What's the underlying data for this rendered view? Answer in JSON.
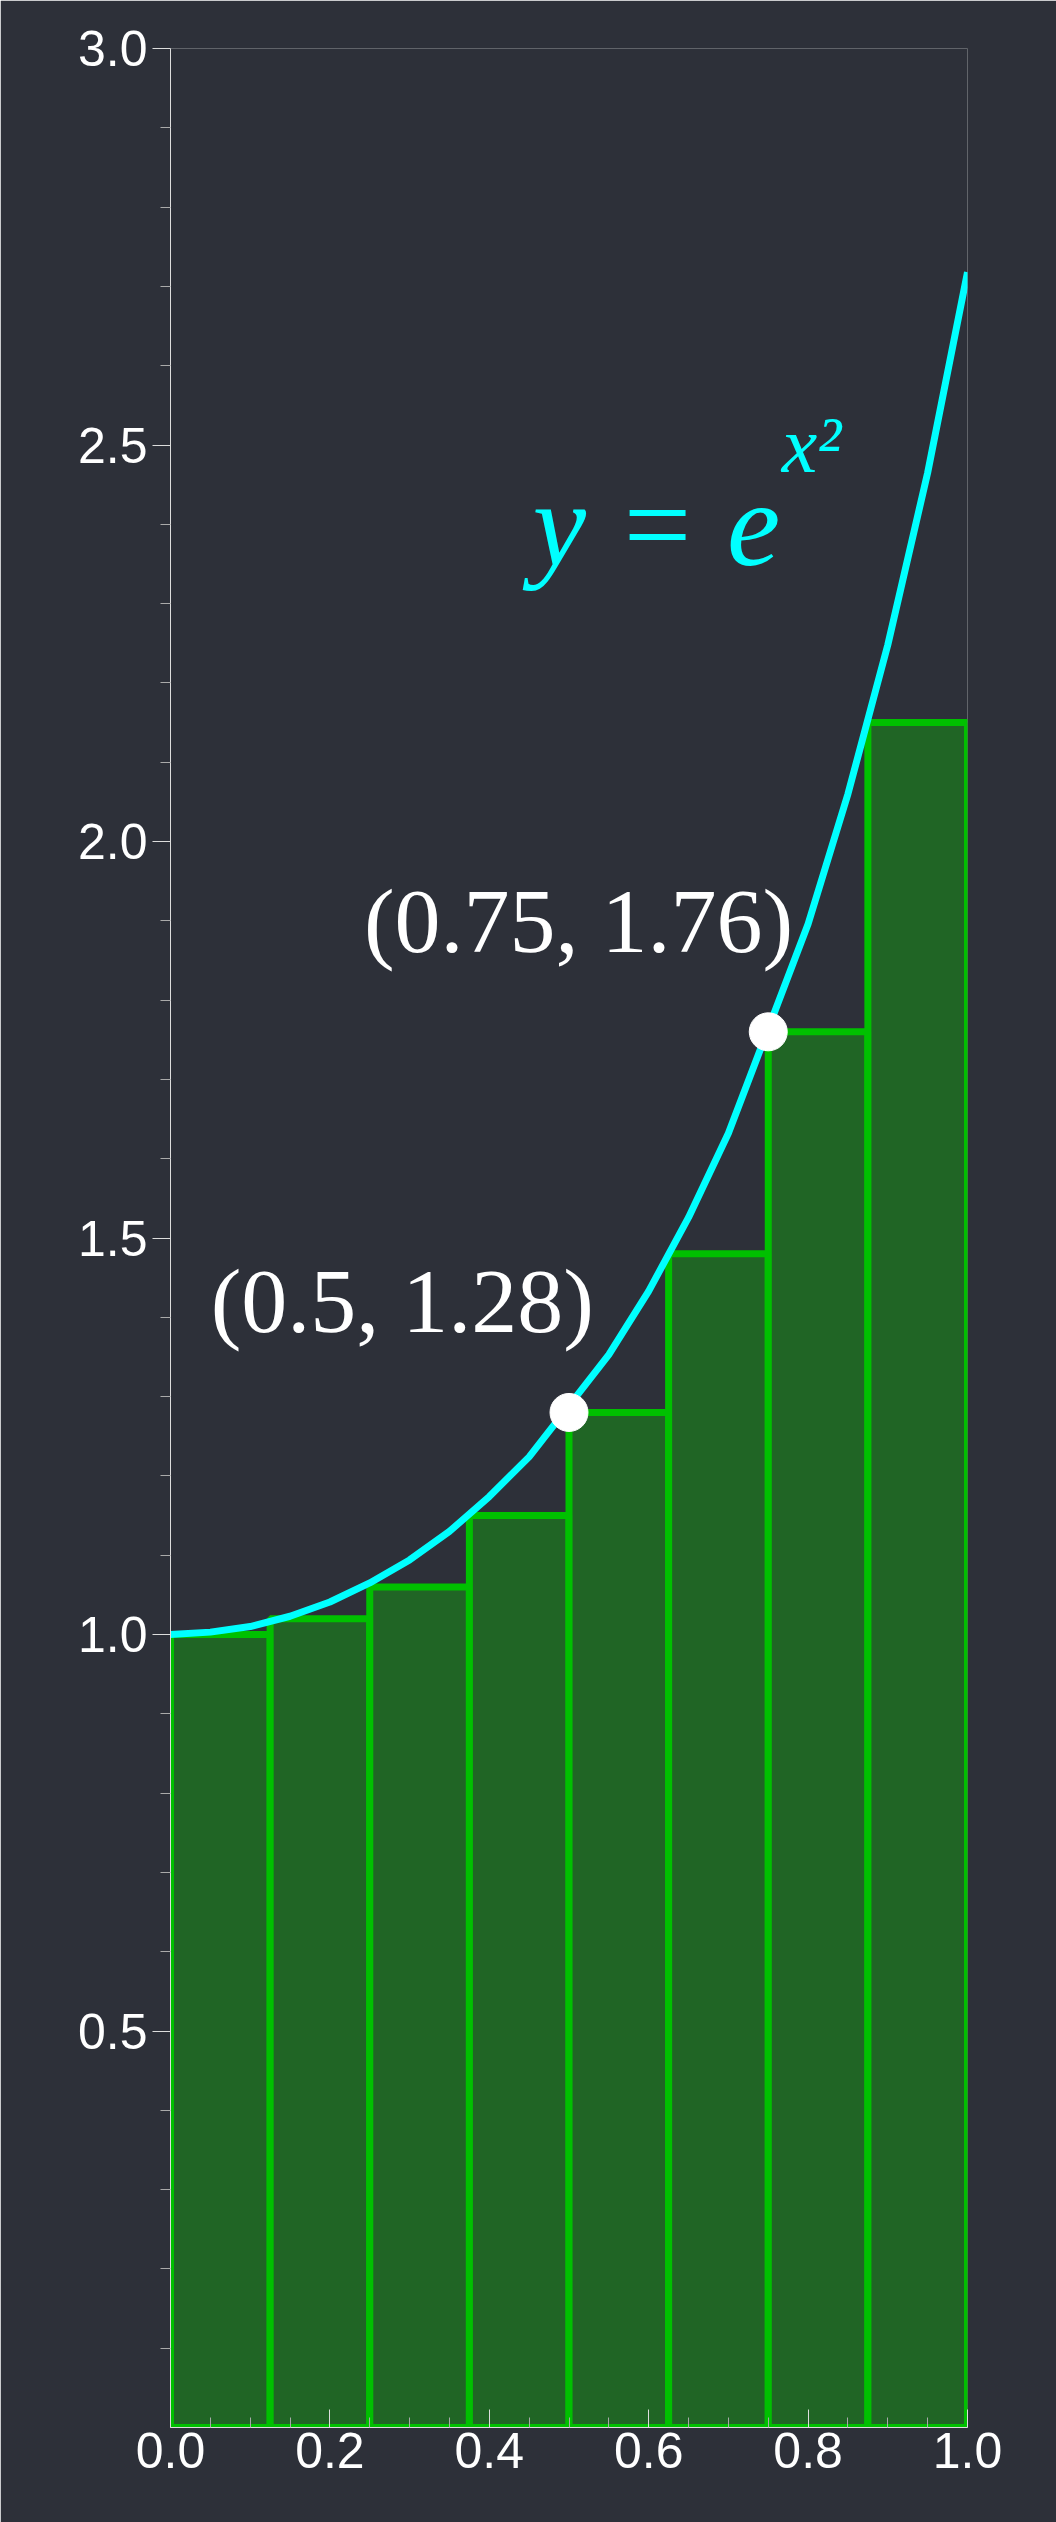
{
  "chart_data": {
    "type": "histogram",
    "bins": [
      0,
      0.125,
      0.25,
      0.375,
      0.5,
      0.625,
      0.75,
      0.875,
      1.0
    ],
    "values": [
      1.0,
      1.02,
      1.06,
      1.15,
      1.28,
      1.48,
      1.76,
      2.15
    ],
    "color": "#00c000",
    "series": [
      {
        "type": "line",
        "color": "#00ffff",
        "x": [
          0,
          0.05,
          0.1,
          0.15,
          0.2,
          0.25,
          0.3,
          0.35,
          0.4,
          0.45,
          0.55,
          0.6,
          0.65,
          0.7,
          0.8,
          0.85,
          0.9,
          0.95,
          1.0
        ],
        "values": [
          1.0,
          1.003,
          1.01,
          1.023,
          1.041,
          1.065,
          1.094,
          1.13,
          1.174,
          1.224,
          1.353,
          1.433,
          1.526,
          1.632,
          1.896,
          2.06,
          2.248,
          2.465,
          2.718
        ]
      },
      {
        "type": "scatter",
        "color": "#ffffff",
        "marker": "circle",
        "x": [
          0.5,
          0.75
        ],
        "values": [
          1.28,
          1.76
        ]
      }
    ],
    "annotations": [
      "y = e$^{x²}$",
      {
        "text": "(0.5, 1.28)",
        "x": 0.5,
        "y": 1.28
      },
      {
        "text": "(0.75, 1.76)",
        "x": 0.75,
        "y": 1.76
      }
    ],
    "xlim": [
      0,
      1.0
    ],
    "ylim": [
      0,
      3.0
    ],
    "xticks": [
      {
        "value": 0,
        "label": "0.0"
      },
      {
        "value": 0.05,
        "label": null
      },
      {
        "value": 0.1,
        "label": null
      },
      {
        "value": 0.15,
        "label": null
      },
      {
        "value": 0.2,
        "label": "0.2"
      },
      {
        "value": 0.25,
        "label": null
      },
      {
        "value": 0.3,
        "label": null
      },
      {
        "value": 0.35,
        "label": null
      },
      {
        "value": 0.4,
        "label": "0.4"
      },
      {
        "value": 0.45,
        "label": null
      },
      {
        "value": 0.5,
        "label": null
      },
      {
        "value": 0.55,
        "label": null
      },
      {
        "value": 0.6,
        "label": "0.6"
      },
      {
        "value": 0.65,
        "label": null
      },
      {
        "value": 0.7,
        "label": null
      },
      {
        "value": 0.75,
        "label": null
      },
      {
        "value": 0.8,
        "label": "0.8"
      },
      {
        "value": 0.85,
        "label": null
      },
      {
        "value": 0.9,
        "label": null
      },
      {
        "value": 0.95,
        "label": null
      },
      {
        "value": 1.0,
        "label": "1.0"
      }
    ],
    "yticks": [
      {
        "value": 0.1,
        "label": null
      },
      {
        "value": 0.2,
        "label": null
      },
      {
        "value": 0.3,
        "label": null
      },
      {
        "value": 0.4,
        "label": null
      },
      {
        "value": 0.5,
        "label": "0.5"
      },
      {
        "value": 0.6,
        "label": null
      },
      {
        "value": 0.7,
        "label": null
      },
      {
        "value": 0.8,
        "label": null
      },
      {
        "value": 0.9,
        "label": null
      },
      {
        "value": 1.0,
        "label": "1.0"
      },
      {
        "value": 1.1,
        "label": null
      },
      {
        "value": 1.2,
        "label": null
      },
      {
        "value": 1.3,
        "label": null
      },
      {
        "value": 1.4,
        "label": null
      },
      {
        "value": 1.5,
        "label": "1.5"
      },
      {
        "value": 1.6,
        "label": null
      },
      {
        "value": 1.7,
        "label": null
      },
      {
        "value": 1.8,
        "label": null
      },
      {
        "value": 1.9,
        "label": null
      },
      {
        "value": 2.0,
        "label": "2.0"
      },
      {
        "value": 2.1,
        "label": null
      },
      {
        "value": 2.2,
        "label": null
      },
      {
        "value": 2.3,
        "label": null
      },
      {
        "value": 2.4,
        "label": null
      },
      {
        "value": 2.5,
        "label": "2.5"
      },
      {
        "value": 2.6,
        "label": null
      },
      {
        "value": 2.7,
        "label": null
      },
      {
        "value": 2.8,
        "label": null
      },
      {
        "value": 2.9,
        "label": null
      },
      {
        "value": 3.0,
        "label": "3.0"
      }
    ],
    "grid": false
  }
}
